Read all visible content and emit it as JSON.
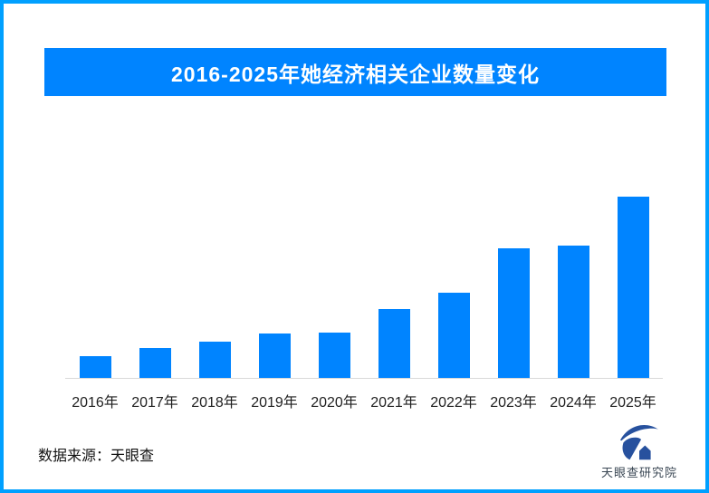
{
  "chart_data": {
    "type": "bar",
    "title": "2016-2025年她经济相关企业数量变化",
    "categories": [
      "2016年",
      "2017年",
      "2018年",
      "2019年",
      "2020年",
      "2021年",
      "2022年",
      "2023年",
      "2024年",
      "2025年"
    ],
    "values": [
      24,
      33,
      40,
      49,
      50,
      76,
      94,
      143,
      146,
      200
    ],
    "value_note": "relative bar heights estimated from pixels; no y-axis, gridlines or data labels are shown in the image",
    "xlabel": "",
    "ylabel": "",
    "ylim": [
      0,
      200
    ],
    "grid": false,
    "legend": false,
    "bar_color": "#0084FF"
  },
  "source": "数据来源：天眼查",
  "footer": {
    "brand": "天眼查研究院"
  },
  "colors": {
    "page_border": "#00A0FF",
    "banner_background": "#0084FF",
    "banner_text": "#FFFFFF",
    "bar": "#0084FF",
    "axis_line": "#D9D9D9",
    "axis_label": "#1F1F1F",
    "logo_navy": "#27519E",
    "logo_text": "#3A4754"
  }
}
